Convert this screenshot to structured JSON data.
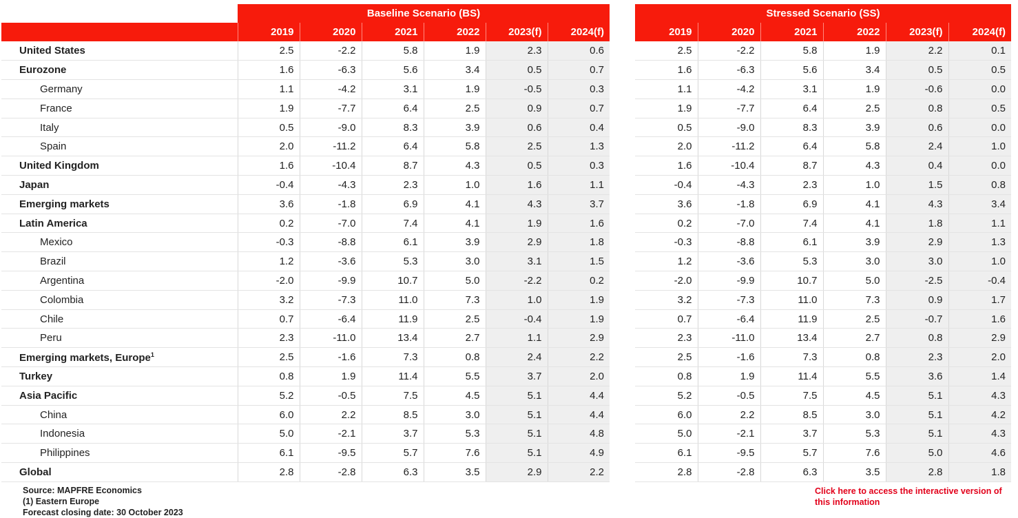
{
  "chart_data": {
    "type": "table",
    "years": [
      "2019",
      "2020",
      "2021",
      "2022",
      "2023(f)",
      "2024(f)"
    ],
    "scenarios": [
      {
        "name": "Baseline Scenario (BS)"
      },
      {
        "name": "Stressed Scenario (SS)"
      }
    ],
    "rows": [
      {
        "label": "United States",
        "level": 0,
        "bs": [
          "2.5",
          "-2.2",
          "5.8",
          "1.9",
          "2.3",
          "0.6"
        ],
        "ss": [
          "2.5",
          "-2.2",
          "5.8",
          "1.9",
          "2.2",
          "0.1"
        ]
      },
      {
        "label": "Eurozone",
        "level": 0,
        "bs": [
          "1.6",
          "-6.3",
          "5.6",
          "3.4",
          "0.5",
          "0.7"
        ],
        "ss": [
          "1.6",
          "-6.3",
          "5.6",
          "3.4",
          "0.5",
          "0.5"
        ]
      },
      {
        "label": "Germany",
        "level": 1,
        "bs": [
          "1.1",
          "-4.2",
          "3.1",
          "1.9",
          "-0.5",
          "0.3"
        ],
        "ss": [
          "1.1",
          "-4.2",
          "3.1",
          "1.9",
          "-0.6",
          "0.0"
        ]
      },
      {
        "label": "France",
        "level": 1,
        "bs": [
          "1.9",
          "-7.7",
          "6.4",
          "2.5",
          "0.9",
          "0.7"
        ],
        "ss": [
          "1.9",
          "-7.7",
          "6.4",
          "2.5",
          "0.8",
          "0.5"
        ]
      },
      {
        "label": "Italy",
        "level": 1,
        "bs": [
          "0.5",
          "-9.0",
          "8.3",
          "3.9",
          "0.6",
          "0.4"
        ],
        "ss": [
          "0.5",
          "-9.0",
          "8.3",
          "3.9",
          "0.6",
          "0.0"
        ]
      },
      {
        "label": "Spain",
        "level": 1,
        "bs": [
          "2.0",
          "-11.2",
          "6.4",
          "5.8",
          "2.5",
          "1.3"
        ],
        "ss": [
          "2.0",
          "-11.2",
          "6.4",
          "5.8",
          "2.4",
          "1.0"
        ]
      },
      {
        "label": "United Kingdom",
        "level": 0,
        "bs": [
          "1.6",
          "-10.4",
          "8.7",
          "4.3",
          "0.5",
          "0.3"
        ],
        "ss": [
          "1.6",
          "-10.4",
          "8.7",
          "4.3",
          "0.4",
          "0.0"
        ]
      },
      {
        "label": "Japan",
        "level": 0,
        "bs": [
          "-0.4",
          "-4.3",
          "2.3",
          "1.0",
          "1.6",
          "1.1"
        ],
        "ss": [
          "-0.4",
          "-4.3",
          "2.3",
          "1.0",
          "1.5",
          "0.8"
        ]
      },
      {
        "label": "Emerging markets",
        "level": 0,
        "bs": [
          "3.6",
          "-1.8",
          "6.9",
          "4.1",
          "4.3",
          "3.7"
        ],
        "ss": [
          "3.6",
          "-1.8",
          "6.9",
          "4.1",
          "4.3",
          "3.4"
        ]
      },
      {
        "label": "Latin America",
        "level": 0,
        "bs": [
          "0.2",
          "-7.0",
          "7.4",
          "4.1",
          "1.9",
          "1.6"
        ],
        "ss": [
          "0.2",
          "-7.0",
          "7.4",
          "4.1",
          "1.8",
          "1.1"
        ]
      },
      {
        "label": "Mexico",
        "level": 1,
        "bs": [
          "-0.3",
          "-8.8",
          "6.1",
          "3.9",
          "2.9",
          "1.8"
        ],
        "ss": [
          "-0.3",
          "-8.8",
          "6.1",
          "3.9",
          "2.9",
          "1.3"
        ]
      },
      {
        "label": "Brazil",
        "level": 1,
        "bs": [
          "1.2",
          "-3.6",
          "5.3",
          "3.0",
          "3.1",
          "1.5"
        ],
        "ss": [
          "1.2",
          "-3.6",
          "5.3",
          "3.0",
          "3.0",
          "1.0"
        ]
      },
      {
        "label": "Argentina",
        "level": 1,
        "bs": [
          "-2.0",
          "-9.9",
          "10.7",
          "5.0",
          "-2.2",
          "0.2"
        ],
        "ss": [
          "-2.0",
          "-9.9",
          "10.7",
          "5.0",
          "-2.5",
          "-0.4"
        ]
      },
      {
        "label": "Colombia",
        "level": 1,
        "bs": [
          "3.2",
          "-7.3",
          "11.0",
          "7.3",
          "1.0",
          "1.9"
        ],
        "ss": [
          "3.2",
          "-7.3",
          "11.0",
          "7.3",
          "0.9",
          "1.7"
        ]
      },
      {
        "label": "Chile",
        "level": 1,
        "bs": [
          "0.7",
          "-6.4",
          "11.9",
          "2.5",
          "-0.4",
          "1.9"
        ],
        "ss": [
          "0.7",
          "-6.4",
          "11.9",
          "2.5",
          "-0.7",
          "1.6"
        ]
      },
      {
        "label": "Peru",
        "level": 1,
        "bs": [
          "2.3",
          "-11.0",
          "13.4",
          "2.7",
          "1.1",
          "2.9"
        ],
        "ss": [
          "2.3",
          "-11.0",
          "13.4",
          "2.7",
          "0.8",
          "2.9"
        ]
      },
      {
        "label": "Emerging markets, Europe",
        "sup": "1",
        "level": 0,
        "bs": [
          "2.5",
          "-1.6",
          "7.3",
          "0.8",
          "2.4",
          "2.2"
        ],
        "ss": [
          "2.5",
          "-1.6",
          "7.3",
          "0.8",
          "2.3",
          "2.0"
        ]
      },
      {
        "label": "Turkey",
        "level": 0,
        "bs": [
          "0.8",
          "1.9",
          "11.4",
          "5.5",
          "3.7",
          "2.0"
        ],
        "ss": [
          "0.8",
          "1.9",
          "11.4",
          "5.5",
          "3.6",
          "1.4"
        ]
      },
      {
        "label": "Asia Pacific",
        "level": 0,
        "bs": [
          "5.2",
          "-0.5",
          "7.5",
          "4.5",
          "5.1",
          "4.4"
        ],
        "ss": [
          "5.2",
          "-0.5",
          "7.5",
          "4.5",
          "5.1",
          "4.3"
        ]
      },
      {
        "label": "China",
        "level": 1,
        "bs": [
          "6.0",
          "2.2",
          "8.5",
          "3.0",
          "5.1",
          "4.4"
        ],
        "ss": [
          "6.0",
          "2.2",
          "8.5",
          "3.0",
          "5.1",
          "4.2"
        ]
      },
      {
        "label": "Indonesia",
        "level": 1,
        "bs": [
          "5.0",
          "-2.1",
          "3.7",
          "5.3",
          "5.1",
          "4.8"
        ],
        "ss": [
          "5.0",
          "-2.1",
          "3.7",
          "5.3",
          "5.1",
          "4.3"
        ]
      },
      {
        "label": "Philippines",
        "level": 1,
        "bs": [
          "6.1",
          "-9.5",
          "5.7",
          "7.6",
          "5.1",
          "4.9"
        ],
        "ss": [
          "6.1",
          "-9.5",
          "5.7",
          "7.6",
          "5.0",
          "4.6"
        ]
      },
      {
        "label": "Global",
        "level": 0,
        "bs": [
          "2.8",
          "-2.8",
          "6.3",
          "3.5",
          "2.9",
          "2.2"
        ],
        "ss": [
          "2.8",
          "-2.8",
          "6.3",
          "3.5",
          "2.8",
          "1.8"
        ]
      }
    ]
  },
  "notes": {
    "source": "Source: MAPFRE Economics",
    "footnote": "(1) Eastern Europe",
    "closing": "Forecast closing date: 30 October 2023"
  },
  "interactive_link": "Click here to access the interactive version of this information",
  "colors": {
    "header_bg": "#f71b0c",
    "header_text": "#ffffff",
    "forecast_bg": "#efefef",
    "link": "#e2001a"
  }
}
